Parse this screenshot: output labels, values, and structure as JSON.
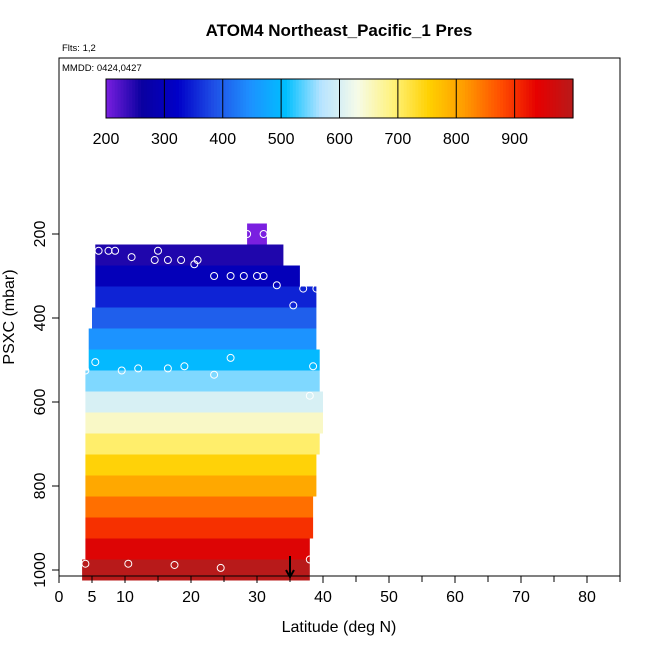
{
  "chart_data": {
    "type": "heatmap",
    "title": "ATOM4 Northeast_Pacific_1 Pres",
    "flights_note": "Flts: 1,2",
    "date_note": "MMDD: 0424,0427",
    "xlabel": "Latitude (deg N)",
    "ylabel": "PSXC (mbar)",
    "xlim": [
      0,
      85
    ],
    "ylim": [
      1000,
      0
    ],
    "x_ticks": [
      0,
      5,
      10,
      20,
      30,
      40,
      50,
      60,
      70,
      80
    ],
    "y_ticks": [
      200,
      400,
      600,
      800,
      1000
    ],
    "grid": false,
    "legend_placement": "top colorbar",
    "colorbar": {
      "range": [
        200,
        1000
      ],
      "ticks": [
        200,
        300,
        400,
        500,
        600,
        700,
        800,
        900
      ],
      "colors": [
        "#7a1fe0",
        "#0a00a0",
        "#0000c8",
        "#1f4fe6",
        "#1e90ff",
        "#00bfff",
        "#b8e4ff",
        "#f6fbe8",
        "#fff27a",
        "#ffd000",
        "#ff9a00",
        "#ff4d00",
        "#e60000",
        "#b81a1a"
      ]
    },
    "bins": [
      {
        "p": 200,
        "x0": 28.5,
        "x1": 31.5
      },
      {
        "p": 250,
        "x0": 5.5,
        "x1": 34
      },
      {
        "p": 300,
        "x0": 5.5,
        "x1": 36.5
      },
      {
        "p": 350,
        "x0": 5.5,
        "x1": 39
      },
      {
        "p": 400,
        "x0": 5,
        "x1": 39
      },
      {
        "p": 450,
        "x0": 4.5,
        "x1": 39
      },
      {
        "p": 500,
        "x0": 4.5,
        "x1": 39.5
      },
      {
        "p": 550,
        "x0": 4,
        "x1": 39.5
      },
      {
        "p": 600,
        "x0": 4,
        "x1": 40
      },
      {
        "p": 650,
        "x0": 4,
        "x1": 40
      },
      {
        "p": 700,
        "x0": 4,
        "x1": 39.5
      },
      {
        "p": 750,
        "x0": 4,
        "x1": 39
      },
      {
        "p": 800,
        "x0": 4,
        "x1": 39
      },
      {
        "p": 850,
        "x0": 4,
        "x1": 38.5
      },
      {
        "p": 900,
        "x0": 4,
        "x1": 38.5
      },
      {
        "p": 950,
        "x0": 4,
        "x1": 38
      },
      {
        "p": 1000,
        "x0": 3.5,
        "x1": 38
      }
    ],
    "points": [
      {
        "lat": 28.5,
        "p": 200
      },
      {
        "lat": 31,
        "p": 200
      },
      {
        "lat": 6,
        "p": 240
      },
      {
        "lat": 7.5,
        "p": 240
      },
      {
        "lat": 8.5,
        "p": 240
      },
      {
        "lat": 11,
        "p": 255
      },
      {
        "lat": 14.5,
        "p": 262
      },
      {
        "lat": 15,
        "p": 240
      },
      {
        "lat": 16.5,
        "p": 262
      },
      {
        "lat": 18.5,
        "p": 262
      },
      {
        "lat": 20.5,
        "p": 272
      },
      {
        "lat": 21,
        "p": 262
      },
      {
        "lat": 23.5,
        "p": 300
      },
      {
        "lat": 26,
        "p": 300
      },
      {
        "lat": 28,
        "p": 300
      },
      {
        "lat": 30,
        "p": 300
      },
      {
        "lat": 31,
        "p": 300
      },
      {
        "lat": 33,
        "p": 322
      },
      {
        "lat": 35.5,
        "p": 370
      },
      {
        "lat": 37,
        "p": 330
      },
      {
        "lat": 39,
        "p": 330
      },
      {
        "lat": 5.5,
        "p": 505
      },
      {
        "lat": 4,
        "p": 525
      },
      {
        "lat": 9.5,
        "p": 525
      },
      {
        "lat": 12,
        "p": 520
      },
      {
        "lat": 16.5,
        "p": 520
      },
      {
        "lat": 19,
        "p": 515
      },
      {
        "lat": 23.5,
        "p": 535
      },
      {
        "lat": 26,
        "p": 495
      },
      {
        "lat": 38.5,
        "p": 515
      },
      {
        "lat": 38,
        "p": 585
      },
      {
        "lat": 4,
        "p": 985
      },
      {
        "lat": 10.5,
        "p": 985
      },
      {
        "lat": 17.5,
        "p": 988
      },
      {
        "lat": 24.5,
        "p": 995
      },
      {
        "lat": 38,
        "p": 975
      }
    ],
    "marker_arrow_lat": 35
  }
}
